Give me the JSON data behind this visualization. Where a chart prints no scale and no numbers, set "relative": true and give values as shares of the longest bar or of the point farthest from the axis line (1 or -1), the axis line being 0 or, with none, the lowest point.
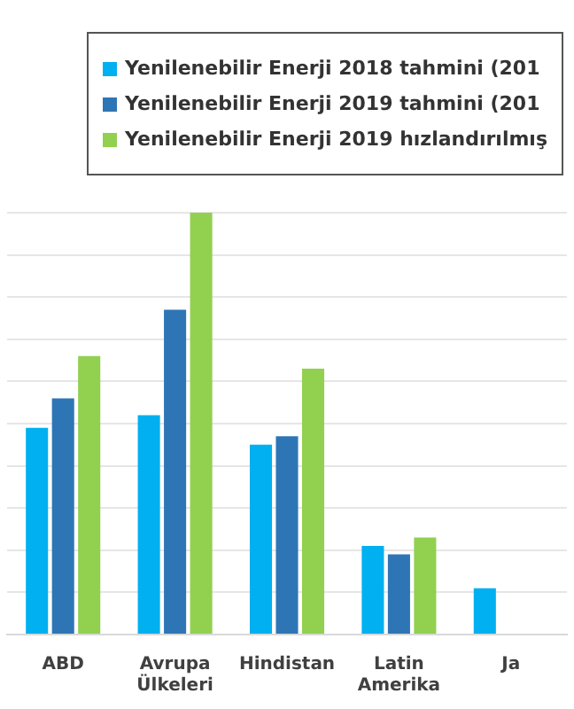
{
  "chart_data": {
    "type": "bar",
    "relative": true,
    "grid": true,
    "legend": "top right",
    "categories": [
      "ABD",
      "Avrupa Ülkeleri",
      "Hindistan",
      "Latin Amerika",
      "Ja"
    ],
    "series": [
      {
        "name": "Yenilenebilir Enerji 2018 tahmini (201",
        "color": "#00b0f0",
        "values": [
          0.49,
          0.52,
          0.45,
          0.21,
          0.11
        ]
      },
      {
        "name": "Yenilenebilir Enerji 2019 tahmini (201",
        "color": "#2e75b6",
        "values": [
          0.56,
          0.77,
          0.47,
          0.19,
          null
        ]
      },
      {
        "name": "Yenilenebilir Enerji 2019 hızlandırılmış",
        "color": "#92d050",
        "values": [
          0.66,
          1,
          0.63,
          0.23,
          null
        ]
      }
    ]
  }
}
